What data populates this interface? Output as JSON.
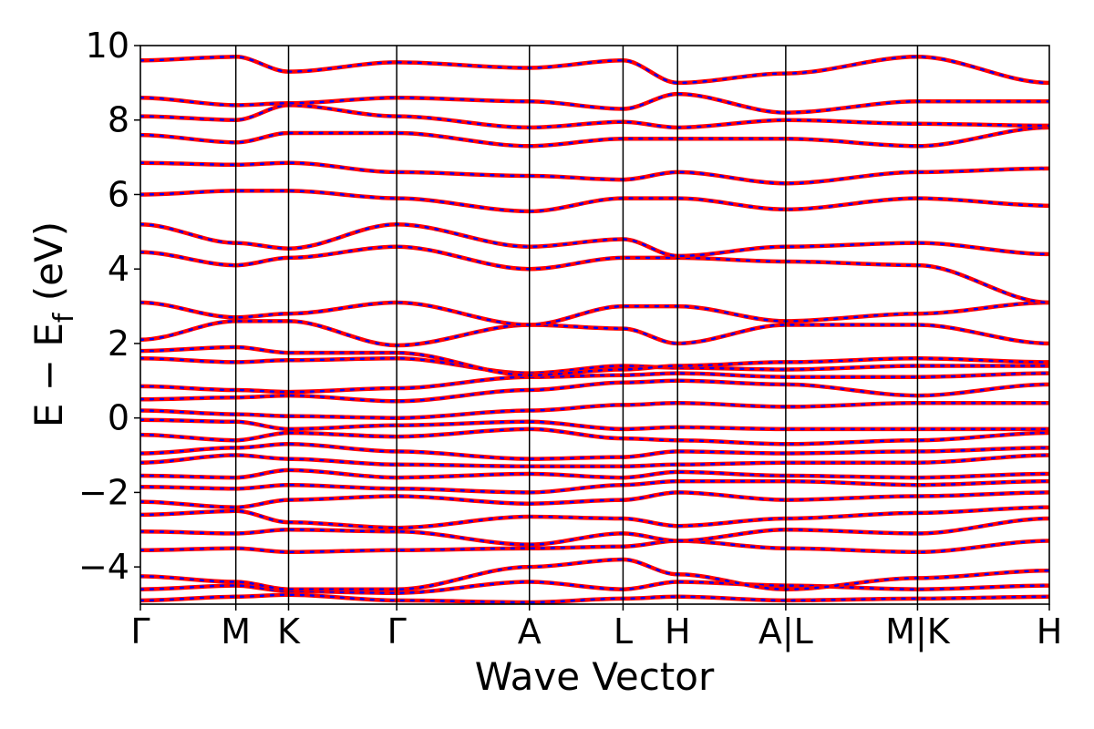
{
  "chart_data": {
    "type": "line",
    "title": "",
    "xlabel": "Wave Vector",
    "ylabel": {
      "prefix": "E − E",
      "subscript": "f",
      "suffix": " (eV)"
    },
    "ylim": [
      -5,
      10
    ],
    "yticks": [
      {
        "value": 10,
        "label": "10"
      },
      {
        "value": 8,
        "label": "8"
      },
      {
        "value": 6,
        "label": "6"
      },
      {
        "value": 4,
        "label": "4"
      },
      {
        "value": 2,
        "label": "2"
      },
      {
        "value": 0,
        "label": "0"
      },
      {
        "value": -2,
        "label": "−2"
      },
      {
        "value": -4,
        "label": "−4"
      }
    ],
    "xlim": [
      0,
      1
    ],
    "kpoints": [
      {
        "x": 0.0,
        "label": "Γ"
      },
      {
        "x": 0.105,
        "label": "M"
      },
      {
        "x": 0.163,
        "label": "K"
      },
      {
        "x": 0.282,
        "label": "Γ"
      },
      {
        "x": 0.428,
        "label": "A"
      },
      {
        "x": 0.531,
        "label": "L"
      },
      {
        "x": 0.591,
        "label": "H"
      },
      {
        "x": 0.71,
        "label": "A|L"
      },
      {
        "x": 0.855,
        "label": "M|K"
      },
      {
        "x": 1.0,
        "label": "H"
      }
    ],
    "series": [
      {
        "color": "#ff0000",
        "style": "solid"
      },
      {
        "color": "#0000ff",
        "style": "dotted"
      }
    ],
    "bands": [
      [
        -4.9,
        -4.8,
        -4.75,
        -4.9,
        -4.95,
        -4.85,
        -4.8,
        -4.9,
        -4.85,
        -4.8
      ],
      [
        -4.6,
        -4.5,
        -4.65,
        -4.7,
        -4.4,
        -4.6,
        -4.4,
        -4.5,
        -4.6,
        -4.5
      ],
      [
        -4.25,
        -4.4,
        -4.6,
        -4.6,
        -4.0,
        -3.8,
        -4.2,
        -4.6,
        -4.3,
        -4.1
      ],
      [
        -3.55,
        -3.5,
        -3.6,
        -3.55,
        -3.5,
        -3.45,
        -3.3,
        -3.5,
        -3.6,
        -3.3
      ],
      [
        -3.05,
        -3.1,
        -3.0,
        -3.05,
        -3.4,
        -3.1,
        -3.3,
        -3.0,
        -3.1,
        -2.7
      ],
      [
        -2.6,
        -2.5,
        -2.8,
        -2.95,
        -2.65,
        -2.7,
        -2.9,
        -2.7,
        -2.55,
        -2.4
      ],
      [
        -2.25,
        -2.4,
        -2.2,
        -2.1,
        -2.3,
        -2.2,
        -2.0,
        -2.2,
        -2.1,
        -2.0
      ],
      [
        -1.85,
        -1.9,
        -1.8,
        -1.9,
        -2.0,
        -1.8,
        -1.7,
        -1.7,
        -1.8,
        -1.7
      ],
      [
        -1.55,
        -1.6,
        -1.4,
        -1.6,
        -1.5,
        -1.6,
        -1.45,
        -1.55,
        -1.6,
        -1.5
      ],
      [
        -1.2,
        -1.0,
        -1.1,
        -1.25,
        -1.3,
        -1.3,
        -1.25,
        -1.2,
        -1.2,
        -1.0
      ],
      [
        -0.95,
        -0.8,
        -0.7,
        -0.9,
        -1.1,
        -1.05,
        -0.9,
        -0.95,
        -0.9,
        -0.8
      ],
      [
        -0.45,
        -0.6,
        -0.4,
        -0.5,
        -0.3,
        -0.55,
        -0.6,
        -0.7,
        -0.6,
        -0.4
      ],
      [
        -0.05,
        -0.1,
        -0.3,
        -0.2,
        -0.1,
        -0.3,
        -0.25,
        -0.3,
        -0.3,
        -0.3
      ],
      [
        0.2,
        0.1,
        0.05,
        0.0,
        0.2,
        0.35,
        0.4,
        0.3,
        0.4,
        0.4
      ],
      [
        0.5,
        0.55,
        0.6,
        0.45,
        0.75,
        0.95,
        1.0,
        0.9,
        0.6,
        0.9
      ],
      [
        0.85,
        0.75,
        0.7,
        0.8,
        1.1,
        1.15,
        1.2,
        1.1,
        1.1,
        1.2
      ],
      [
        1.6,
        1.5,
        1.55,
        1.6,
        1.2,
        1.4,
        1.35,
        1.3,
        1.4,
        1.4
      ],
      [
        1.8,
        1.9,
        1.75,
        1.75,
        1.15,
        1.3,
        1.4,
        1.5,
        1.6,
        1.5
      ],
      [
        2.1,
        2.6,
        2.6,
        1.95,
        2.5,
        2.4,
        2.0,
        2.5,
        2.5,
        2.0
      ],
      [
        3.1,
        2.7,
        2.8,
        3.1,
        2.5,
        3.0,
        3.0,
        2.6,
        2.8,
        3.1
      ],
      [
        4.45,
        4.1,
        4.3,
        4.6,
        4.0,
        4.3,
        4.3,
        4.2,
        4.1,
        3.1
      ],
      [
        5.2,
        4.7,
        4.55,
        5.2,
        4.6,
        4.8,
        4.35,
        4.6,
        4.7,
        4.4
      ],
      [
        6.0,
        6.1,
        6.1,
        5.9,
        5.55,
        5.9,
        5.9,
        5.6,
        5.9,
        5.7
      ],
      [
        6.85,
        6.8,
        6.85,
        6.6,
        6.5,
        6.4,
        6.6,
        6.3,
        6.6,
        6.7
      ],
      [
        7.6,
        7.4,
        7.65,
        7.65,
        7.3,
        7.5,
        7.5,
        7.5,
        7.3,
        7.8
      ],
      [
        8.1,
        8.0,
        8.4,
        8.1,
        7.8,
        7.95,
        7.8,
        8.0,
        7.9,
        7.85
      ],
      [
        8.6,
        8.4,
        8.45,
        8.6,
        8.5,
        8.3,
        8.7,
        8.2,
        8.5,
        8.5
      ],
      [
        9.6,
        9.7,
        9.3,
        9.55,
        9.4,
        9.6,
        9.0,
        9.25,
        9.7,
        9.0
      ]
    ]
  }
}
